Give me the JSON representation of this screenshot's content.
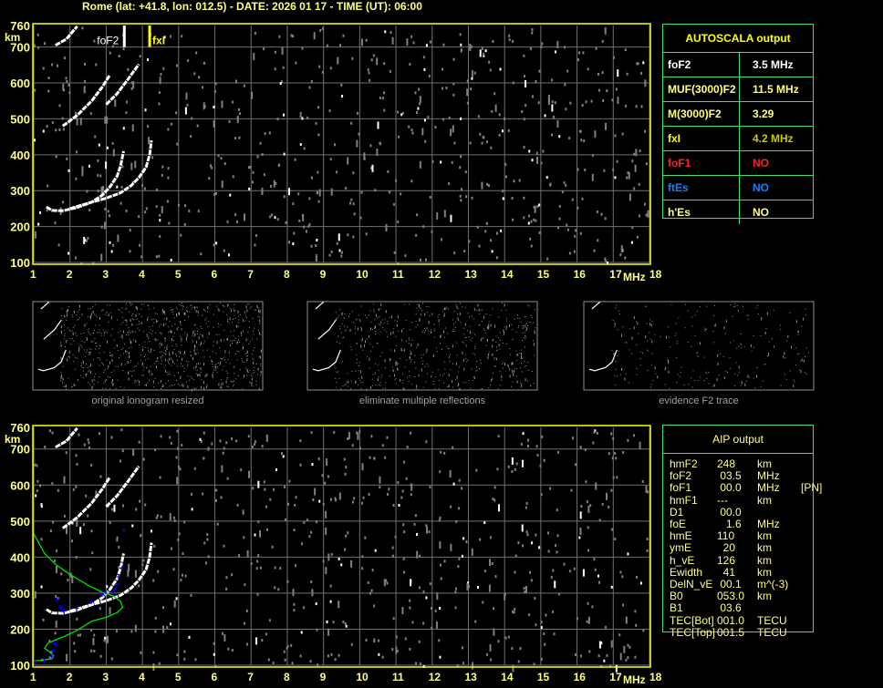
{
  "header": {
    "title": "Rome (lat: +41.8, lon: 012.5) - DATE: 2026 01 17 - TIME (UT): 06:00"
  },
  "colors": {
    "frame": "#ffff00",
    "grid": "#707070",
    "trace": "#ffffff",
    "profile": "#00e000",
    "points": "#0000ff",
    "table_border": "#40e070"
  },
  "chart_data": [
    {
      "type": "scatter",
      "name": "ionogram",
      "xlabel": "MHz",
      "ylabel": "km",
      "xlim": [
        1,
        18
      ],
      "ylim": [
        100,
        760
      ],
      "xticks": [
        1,
        2,
        3,
        4,
        5,
        6,
        7,
        8,
        9,
        10,
        11,
        12,
        13,
        14,
        15,
        16,
        17,
        18
      ],
      "yticks": [
        100,
        200,
        300,
        400,
        500,
        600,
        700,
        760
      ],
      "grid": true,
      "markers": [
        {
          "label": "foF2",
          "freq": 3.5
        },
        {
          "label": "fxI",
          "freq": 4.2
        }
      ],
      "traces": [
        [
          [
            1.35,
            255
          ],
          [
            1.5,
            245
          ],
          [
            1.8,
            244
          ],
          [
            2.2,
            253
          ],
          [
            2.6,
            268
          ],
          [
            2.9,
            288
          ],
          [
            3.1,
            310
          ],
          [
            3.3,
            340
          ],
          [
            3.4,
            370
          ],
          [
            3.48,
            410
          ]
        ],
        [
          [
            2.0,
            250
          ],
          [
            2.6,
            268
          ],
          [
            3.0,
            279
          ],
          [
            3.4,
            294
          ],
          [
            3.7,
            315
          ],
          [
            3.9,
            336
          ],
          [
            4.1,
            365
          ],
          [
            4.2,
            400
          ],
          [
            4.25,
            440
          ]
        ],
        [
          [
            1.8,
            480
          ],
          [
            2.2,
            510
          ],
          [
            2.6,
            550
          ],
          [
            2.9,
            590
          ],
          [
            3.1,
            622
          ]
        ],
        [
          [
            3.0,
            540
          ],
          [
            3.3,
            570
          ],
          [
            3.6,
            610
          ],
          [
            3.9,
            652
          ]
        ],
        [
          [
            1.6,
            705
          ],
          [
            1.9,
            722
          ],
          [
            2.2,
            758
          ]
        ]
      ]
    },
    {
      "type": "scatter",
      "name": "aip-profile",
      "xlabel": "MHz",
      "ylabel": "km",
      "xlim": [
        1,
        18
      ],
      "ylim": [
        100,
        760
      ],
      "grid": true,
      "profile": [
        [
          1.0,
          465
        ],
        [
          1.3,
          410
        ],
        [
          1.6,
          380
        ],
        [
          2.0,
          352
        ],
        [
          2.5,
          322
        ],
        [
          2.9,
          302
        ],
        [
          3.2,
          292
        ],
        [
          3.4,
          277
        ],
        [
          3.45,
          260
        ],
        [
          3.3,
          246
        ],
        [
          3.0,
          233
        ],
        [
          2.6,
          222
        ],
        [
          2.2,
          197
        ],
        [
          1.8,
          178
        ],
        [
          1.4,
          162
        ],
        [
          1.3,
          147
        ],
        [
          1.45,
          136
        ],
        [
          1.55,
          126
        ],
        [
          1.5,
          118
        ],
        [
          1.2,
          114
        ],
        [
          1.0,
          112
        ]
      ],
      "points": [
        [
          1.05,
          110
        ],
        [
          1.3,
          112
        ],
        [
          1.5,
          125
        ],
        [
          1.55,
          140
        ],
        [
          1.6,
          160
        ],
        [
          1.65,
          282
        ],
        [
          1.75,
          260
        ],
        [
          1.85,
          250
        ],
        [
          2.2,
          258
        ],
        [
          2.6,
          276
        ],
        [
          2.9,
          296
        ],
        [
          3.0,
          302
        ],
        [
          3.2,
          302
        ],
        [
          3.25,
          310
        ],
        [
          3.3,
          325
        ],
        [
          3.35,
          345
        ],
        [
          3.45,
          370
        ],
        [
          3.5,
          475
        ]
      ]
    }
  ],
  "autoscala": {
    "title": "AUTOSCALA output",
    "rows": [
      {
        "k": "foF2",
        "v": "3.5 MHz",
        "kc": "#ffffff",
        "vc": "#ffffff"
      },
      {
        "k": "MUF(3000)F2",
        "v": "11.5 MHz",
        "kc": "#ffff80",
        "vc": "#ffff80"
      },
      {
        "k": "M(3000)F2",
        "v": "3.29",
        "kc": "#ffff80",
        "vc": "#ffff80"
      },
      {
        "k": "fxI",
        "v": "4.2 MHz",
        "kc": "#ffff00",
        "vc": "#c8c800"
      },
      {
        "k": "foF1",
        "v": "NO",
        "kc": "#ff2020",
        "vc": "#ff2020"
      },
      {
        "k": "ftEs",
        "v": "NO",
        "kc": "#1080ff",
        "vc": "#1080ff"
      },
      {
        "k": "h'Es",
        "v": "NO",
        "kc": "#ffff80",
        "vc": "#ffff80"
      }
    ]
  },
  "aip": {
    "title": "AIP output",
    "rows": [
      [
        "hmF2",
        "248",
        "km",
        ""
      ],
      [
        "foF2",
        " 03.5",
        "MHz",
        ""
      ],
      [
        "foF1",
        " 00.0",
        "MHz",
        "[PN]"
      ],
      [
        "hmF1",
        "---",
        "km",
        ""
      ],
      [
        "D1",
        " 00.0",
        "",
        ""
      ],
      [
        "foE",
        "   1.6",
        "MHz",
        ""
      ],
      [
        "hmE",
        "110",
        "km",
        ""
      ],
      [
        "ymE",
        "  20",
        "km",
        ""
      ],
      [
        "h_vE",
        "126",
        "km",
        ""
      ],
      [
        "Ewidth",
        "  41",
        "km",
        ""
      ],
      [
        "DelN_vE",
        " 00.1",
        "m^(-3)",
        ""
      ],
      [
        "B0",
        "053.0",
        "km",
        ""
      ],
      [
        "B1",
        " 03.6",
        "",
        ""
      ],
      [
        "TEC[Bot]",
        "001.0",
        "TECU",
        ""
      ],
      [
        "TEC[Top]",
        "001.5",
        "TECU",
        ""
      ]
    ]
  },
  "thumbnails": [
    "original ionogram resized",
    "eliminate multiple reflections",
    "evidence F2 trace"
  ]
}
